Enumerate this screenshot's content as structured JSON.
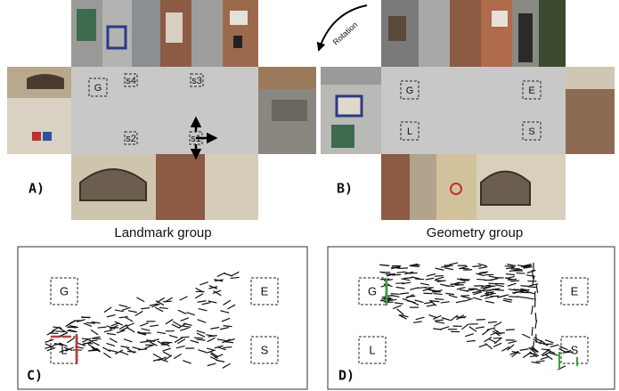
{
  "panels": {
    "a": {
      "label": "A)",
      "caption": "Landmark group",
      "markers": [
        "G",
        "s4",
        "s3",
        "s2",
        "s1"
      ]
    },
    "b": {
      "label": "B)",
      "caption": "Geometry group",
      "rotation": "Rotation",
      "markers": [
        "G",
        "E",
        "L",
        "S"
      ]
    },
    "c": {
      "label": "C)",
      "markers": [
        "G",
        "E",
        "L",
        "S"
      ]
    },
    "d": {
      "label": "D)",
      "markers": [
        "G",
        "E",
        "L",
        "S"
      ]
    }
  }
}
